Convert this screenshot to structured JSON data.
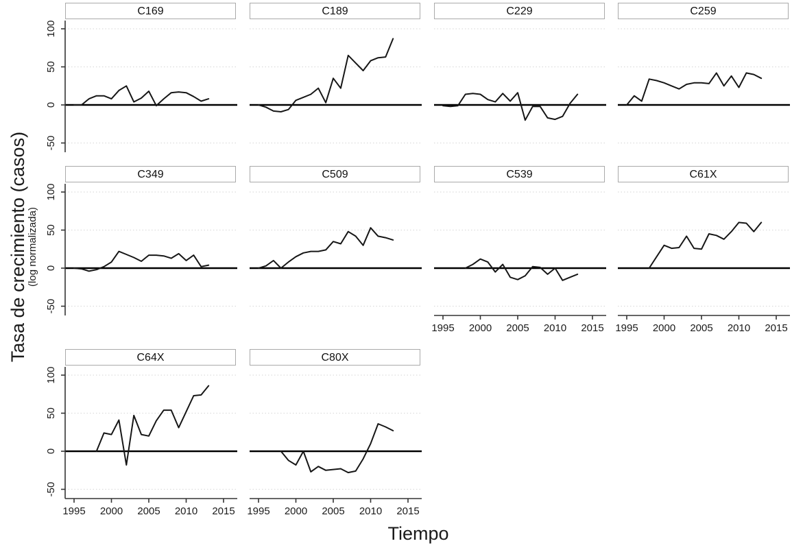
{
  "figure": {
    "ylabel_main": "Tasa de crecimiento (casos)",
    "ylabel_sub": "(log normalizada)",
    "xlabel": "Tiempo",
    "y_ticks": [
      100,
      50,
      0,
      -50
    ],
    "x_ticks": [
      1995,
      2000,
      2005,
      2010,
      2015
    ],
    "colors": {
      "line": "#161616",
      "zero_line": "#000000",
      "grid": "#dcdcdc",
      "axis": "#333333",
      "panel_border": "#a9a9a9",
      "text": "#1a1a1a"
    }
  },
  "chart_data": [
    {
      "type": "line",
      "title": "C169",
      "x": [
        1995,
        1996,
        1997,
        1998,
        1999,
        2000,
        2001,
        2002,
        2003,
        2004,
        2005,
        2006,
        2007,
        2008,
        2009,
        2010,
        2011,
        2012,
        2013
      ],
      "values": [
        0,
        0,
        8,
        12,
        12,
        8,
        19,
        25,
        4,
        9,
        18,
        -1,
        8,
        16,
        17,
        16,
        11,
        5,
        8
      ],
      "ylim": [
        -62,
        111
      ],
      "xlim": [
        1993.8,
        2016.8
      ],
      "grid": "horizontal-dotted"
    },
    {
      "type": "line",
      "title": "C189",
      "x": [
        1995,
        1996,
        1997,
        1998,
        1999,
        2000,
        2001,
        2002,
        2003,
        2004,
        2005,
        2006,
        2007,
        2008,
        2009,
        2010,
        2011,
        2012,
        2013
      ],
      "values": [
        0,
        -3,
        -8,
        -9,
        -6,
        6,
        10,
        14,
        22,
        3,
        35,
        22,
        65,
        55,
        45,
        58,
        62,
        63,
        87
      ],
      "ylim": [
        -62,
        111
      ],
      "xlim": [
        1993.8,
        2016.8
      ],
      "grid": "horizontal-dotted"
    },
    {
      "type": "line",
      "title": "C229",
      "x": [
        1995,
        1996,
        1997,
        1998,
        1999,
        2000,
        2001,
        2002,
        2003,
        2004,
        2005,
        2006,
        2007,
        2008,
        2009,
        2010,
        2011,
        2012,
        2013
      ],
      "values": [
        -1,
        -2,
        -1,
        14,
        15,
        14,
        7,
        4,
        15,
        5,
        16,
        -20,
        -2,
        -2,
        -17,
        -19,
        -15,
        2,
        14
      ],
      "ylim": [
        -62,
        111
      ],
      "xlim": [
        1993.8,
        2016.8
      ],
      "grid": "horizontal-dotted"
    },
    {
      "type": "line",
      "title": "C259",
      "x": [
        1995,
        1996,
        1997,
        1998,
        1999,
        2000,
        2001,
        2002,
        2003,
        2004,
        2005,
        2006,
        2007,
        2008,
        2009,
        2010,
        2011,
        2012,
        2013
      ],
      "values": [
        0,
        12,
        5,
        34,
        32,
        29,
        25,
        21,
        27,
        29,
        29,
        28,
        42,
        25,
        38,
        23,
        42,
        40,
        35
      ],
      "ylim": [
        -62,
        111
      ],
      "xlim": [
        1993.8,
        2016.8
      ],
      "grid": "horizontal-dotted"
    },
    {
      "type": "line",
      "title": "C349",
      "x": [
        1995,
        1996,
        1997,
        1998,
        1999,
        2000,
        2001,
        2002,
        2003,
        2004,
        2005,
        2006,
        2007,
        2008,
        2009,
        2010,
        2011,
        2012,
        2013
      ],
      "values": [
        0,
        -1,
        -4,
        -2,
        2,
        8,
        22,
        18,
        14,
        9,
        17,
        17,
        16,
        13,
        19,
        10,
        17,
        2,
        4
      ],
      "ylim": [
        -62,
        111
      ],
      "xlim": [
        1993.8,
        2016.8
      ],
      "grid": "horizontal-dotted"
    },
    {
      "type": "line",
      "title": "C509",
      "x": [
        1995,
        1996,
        1997,
        1998,
        1999,
        2000,
        2001,
        2002,
        2003,
        2004,
        2005,
        2006,
        2007,
        2008,
        2009,
        2010,
        2011,
        2012,
        2013
      ],
      "values": [
        0,
        3,
        10,
        0,
        8,
        15,
        20,
        22,
        22,
        24,
        35,
        32,
        48,
        42,
        30,
        53,
        42,
        40,
        37
      ],
      "ylim": [
        -62,
        111
      ],
      "xlim": [
        1993.8,
        2016.8
      ],
      "grid": "horizontal-dotted"
    },
    {
      "type": "line",
      "title": "C539",
      "x": [
        1998,
        1999,
        2000,
        2001,
        2002,
        2003,
        2004,
        2005,
        2006,
        2007,
        2008,
        2009,
        2010,
        2011,
        2012,
        2013
      ],
      "values": [
        0,
        5,
        12,
        8,
        -5,
        5,
        -12,
        -15,
        -10,
        2,
        1,
        -8,
        0,
        -16,
        -12,
        -8
      ],
      "ylim": [
        -62,
        111
      ],
      "xlim": [
        1993.8,
        2016.8
      ],
      "grid": "horizontal-dotted"
    },
    {
      "type": "line",
      "title": "C61X",
      "x": [
        1998,
        1999,
        2000,
        2001,
        2002,
        2003,
        2004,
        2005,
        2006,
        2007,
        2008,
        2009,
        2010,
        2011,
        2012,
        2013
      ],
      "values": [
        0,
        15,
        30,
        26,
        27,
        42,
        26,
        25,
        45,
        43,
        38,
        48,
        60,
        59,
        48,
        60
      ],
      "ylim": [
        -62,
        111
      ],
      "xlim": [
        1993.8,
        2016.8
      ],
      "grid": "horizontal-dotted"
    },
    {
      "type": "line",
      "title": "C64X",
      "x": [
        1998,
        1999,
        2000,
        2001,
        2002,
        2003,
        2004,
        2005,
        2006,
        2007,
        2008,
        2009,
        2010,
        2011,
        2012,
        2013
      ],
      "values": [
        0,
        24,
        22,
        41,
        -18,
        47,
        22,
        20,
        40,
        54,
        54,
        31,
        52,
        73,
        74,
        86
      ],
      "ylim": [
        -62,
        111
      ],
      "xlim": [
        1993.8,
        2016.8
      ],
      "grid": "horizontal-dotted"
    },
    {
      "type": "line",
      "title": "C80X",
      "x": [
        1998,
        1999,
        2000,
        2001,
        2002,
        2003,
        2004,
        2005,
        2006,
        2007,
        2008,
        2009,
        2010,
        2011,
        2012,
        2013
      ],
      "values": [
        0,
        -12,
        -18,
        0,
        -27,
        -20,
        -25,
        -24,
        -23,
        -28,
        -26,
        -10,
        10,
        36,
        32,
        27
      ],
      "ylim": [
        -62,
        111
      ],
      "xlim": [
        1993.8,
        2016.8
      ],
      "grid": "horizontal-dotted"
    }
  ]
}
